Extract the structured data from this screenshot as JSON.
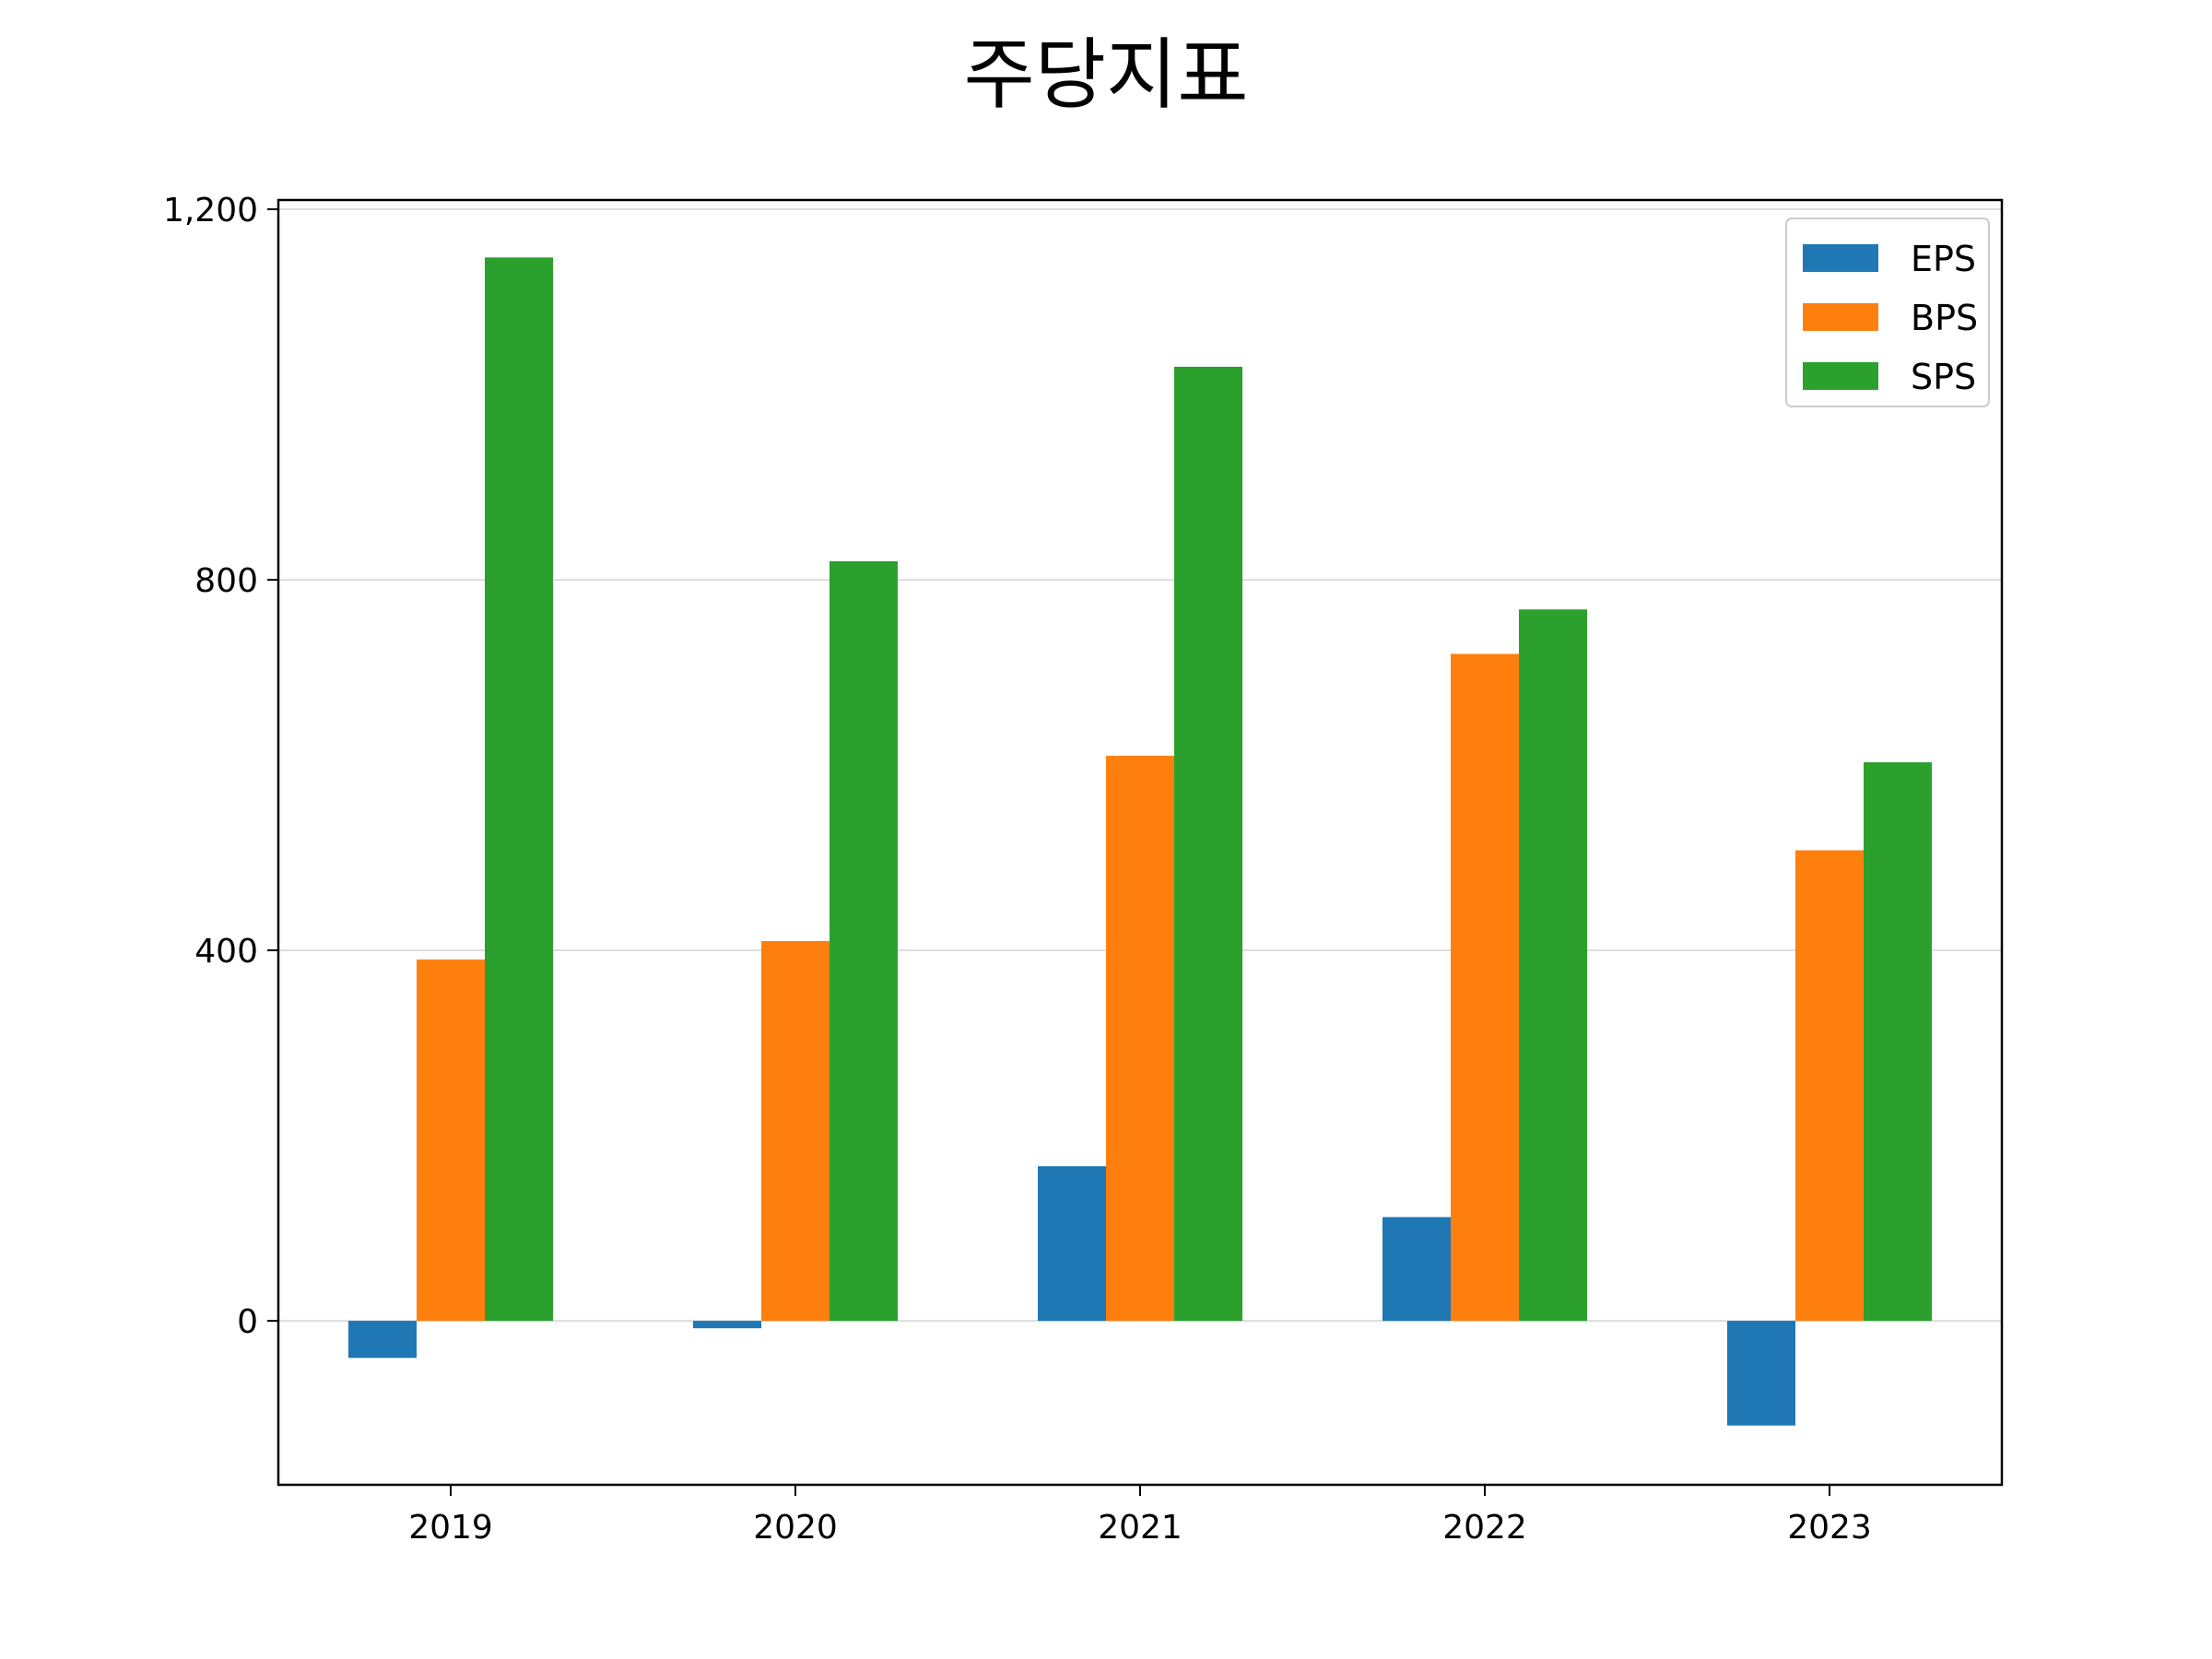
{
  "chart_data": {
    "type": "bar",
    "title": "주당지표",
    "xlabel": "",
    "ylabel": "",
    "categories": [
      "2019",
      "2020",
      "2021",
      "2022",
      "2023"
    ],
    "series": [
      {
        "name": "EPS",
        "color": "#1f77b4",
        "values": [
          -40,
          -8,
          167,
          112,
          -113
        ]
      },
      {
        "name": "BPS",
        "color": "#ff7f0e",
        "values": [
          390,
          410,
          610,
          720,
          508
        ]
      },
      {
        "name": "SPS",
        "color": "#2ca02c",
        "values": [
          1148,
          820,
          1030,
          768,
          603
        ]
      }
    ],
    "ylim": [
      -177,
      1210
    ],
    "yticks": [
      0,
      400,
      800,
      1200
    ],
    "ytick_labels": [
      "0",
      "400",
      "800",
      "1,200"
    ],
    "grid": "horizontal",
    "legend": "top-right"
  }
}
